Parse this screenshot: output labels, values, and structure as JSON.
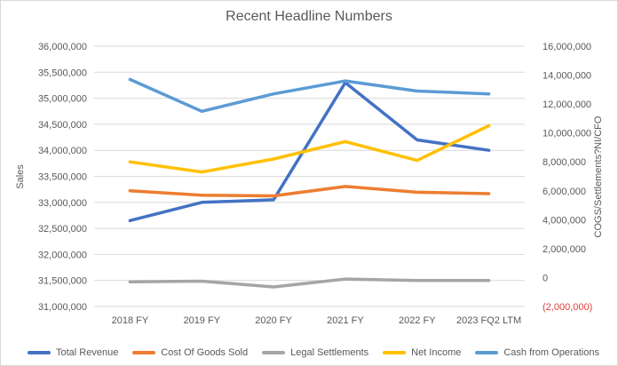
{
  "frame": {
    "background": "#FFFFFF",
    "border_color": "#D9D9D9",
    "text_color": "#595959",
    "gridline_color": "#D9D9D9"
  },
  "chart_data": {
    "type": "line",
    "title": "Recent Headline Numbers",
    "categories": [
      "2018 FY",
      "2019 FY",
      "2020 FY",
      "2021 FY",
      "2022 FY",
      "2023 FQ2 LTM"
    ],
    "grid": true,
    "legend_position": "bottom",
    "left_axis": {
      "title": "Sales",
      "min": 31000000,
      "max": 36000000,
      "step": 500000,
      "tick_labels": [
        "36,000,000",
        "35,500,000",
        "35,000,000",
        "34,500,000",
        "34,000,000",
        "33,500,000",
        "33,000,000",
        "32,500,000",
        "32,000,000",
        "31,500,000",
        "31,000,000"
      ]
    },
    "right_axis": {
      "title": "COGS/Settlements?NI/CFO",
      "min": -2000000,
      "max": 16000000,
      "step": 2000000,
      "tick_labels": [
        "16,000,000",
        "14,000,000",
        "12,000,000",
        "10,000,000",
        "8,000,000",
        "6,000,000",
        "4,000,000",
        "2,000,000",
        "0",
        "(2,000,000)"
      ],
      "negative_tick_color": "#E0403C"
    },
    "series": [
      {
        "name": "Total Revenue",
        "axis": "left",
        "color": "#4472C4",
        "values": [
          32650000,
          33000000,
          33050000,
          35300000,
          34200000,
          34000000
        ]
      },
      {
        "name": "Cost Of Goods Sold",
        "axis": "right",
        "color": "#ED7D31",
        "values": [
          6000000,
          5700000,
          5650000,
          6300000,
          5900000,
          5800000
        ]
      },
      {
        "name": "Legal Settlements",
        "axis": "right",
        "color": "#A5A5A5",
        "values": [
          -300000,
          -250000,
          -650000,
          -100000,
          -200000,
          -200000
        ]
      },
      {
        "name": "Net Income",
        "axis": "right",
        "color": "#FFC000",
        "values": [
          8000000,
          7300000,
          8200000,
          9400000,
          8100000,
          10500000
        ]
      },
      {
        "name": "Cash from Operations",
        "axis": "right",
        "color": "#5B9BD5",
        "values": [
          13700000,
          11500000,
          12700000,
          13600000,
          12900000,
          12700000
        ]
      }
    ]
  }
}
